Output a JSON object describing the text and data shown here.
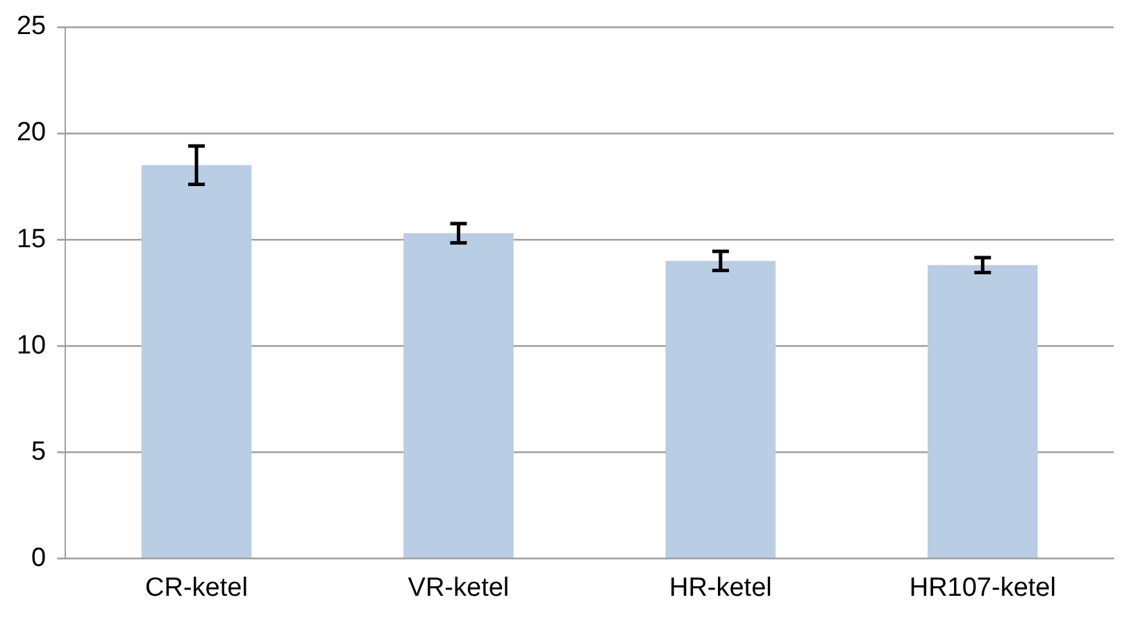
{
  "chart_data": {
    "type": "bar",
    "categories": [
      "CR-ketel",
      "VR-ketel",
      "HR-ketel",
      "HR107-ketel"
    ],
    "values": [
      18.5,
      15.3,
      14.0,
      13.8
    ],
    "errors": [
      0.9,
      0.45,
      0.45,
      0.35
    ],
    "color": "#b9cde5",
    "ylim": [
      0,
      25
    ],
    "yticks": [
      0,
      5,
      10,
      15,
      20,
      25
    ],
    "grid": "y"
  }
}
